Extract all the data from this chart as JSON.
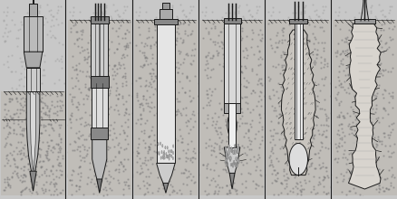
{
  "bg_color": "#c8c8c8",
  "paper_color": "#d8d5d0",
  "line_color": "#1a1a1a",
  "dark_fill": "#555555",
  "med_fill": "#888888",
  "light_fill": "#cccccc",
  "white_fill": "#e8e8e8",
  "soil_color": "#aaaaaa",
  "n_panels": 6
}
